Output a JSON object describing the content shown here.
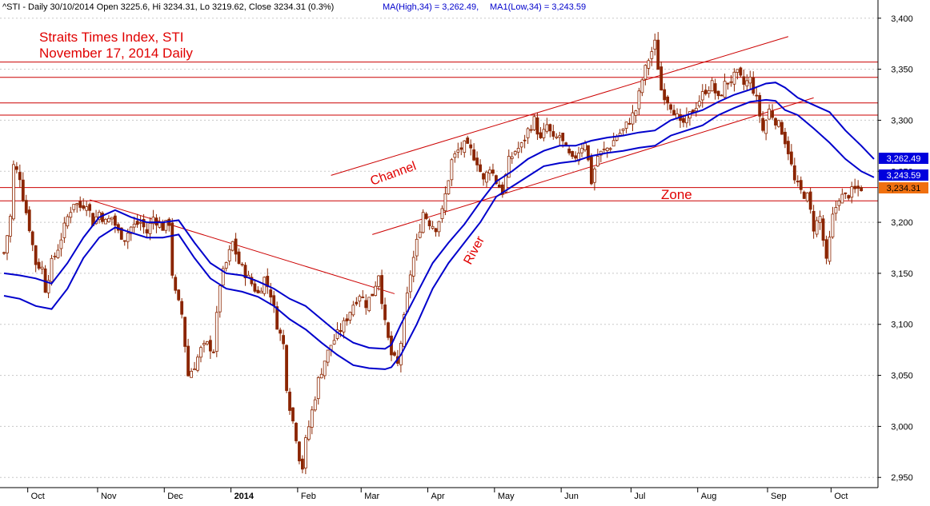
{
  "header": {
    "symbol_text": "^STI - Daily 30/10/2014 Open 3225.6, Hi 3234.31, Lo 3219.62, Close 3234.31 (0.3%)",
    "ma_high_text": "MA(High,34) = 3,262.49,",
    "ma_low_text": "MA1(Low,34) = 3,243.59"
  },
  "annotations": {
    "title_line1": "Straits Times Index, STI",
    "title_line2": "November 17, 2014 Daily",
    "channel": "Channel",
    "river": "River",
    "zone": "Zone"
  },
  "price_tags": {
    "ma_high": "3,262.49",
    "ma_low": "3,243.59",
    "close": "3,234.31",
    "hidden": "3,250"
  },
  "colors": {
    "candle": "#8b2500",
    "ma": "#0000cc",
    "level": "#cc0000",
    "annotation": "#e00000",
    "grid": "#c8c8c8",
    "tag_ma": "#0000dd",
    "tag_close": "#f07010"
  },
  "chart_data": {
    "type": "candlestick",
    "y_axis": {
      "min": 2940,
      "max": 3410,
      "ticks": [
        2950,
        3000,
        3050,
        3100,
        3150,
        3200,
        3250,
        3300,
        3350,
        3400
      ],
      "tick_labels": [
        "2,950",
        "3,000",
        "3,050",
        "3,100",
        "3,150",
        "3,200",
        "3,250",
        "3,300",
        "3,350",
        "3,400"
      ]
    },
    "x_axis": {
      "labels": [
        "Oct",
        "Nov",
        "Dec",
        "2014",
        "Feb",
        "Mar",
        "Apr",
        "May",
        "Jun",
        "Jul",
        "Aug",
        "Sep",
        "Oct"
      ]
    },
    "horizontal_levels": [
      3357,
      3342,
      3317,
      3305,
      3234,
      3221
    ],
    "ohlc_last": {
      "date": "30/10/2014",
      "open": 3225.6,
      "high": 3234.31,
      "low": 3219.62,
      "close": 3234.31
    },
    "ma_high_34": [
      [
        0,
        3150
      ],
      [
        5,
        3148
      ],
      [
        10,
        3145
      ],
      [
        15,
        3140
      ],
      [
        20,
        3160
      ],
      [
        25,
        3185
      ],
      [
        30,
        3205
      ],
      [
        35,
        3212
      ],
      [
        40,
        3205
      ],
      [
        45,
        3200
      ],
      [
        50,
        3200
      ],
      [
        55,
        3202
      ],
      [
        60,
        3180
      ],
      [
        65,
        3160
      ],
      [
        70,
        3150
      ],
      [
        75,
        3148
      ],
      [
        80,
        3142
      ],
      [
        85,
        3135
      ],
      [
        90,
        3125
      ],
      [
        95,
        3118
      ],
      [
        100,
        3105
      ],
      [
        105,
        3092
      ],
      [
        110,
        3082
      ],
      [
        115,
        3077
      ],
      [
        120,
        3076
      ],
      [
        122,
        3080
      ],
      [
        125,
        3100
      ],
      [
        130,
        3130
      ],
      [
        135,
        3160
      ],
      [
        140,
        3180
      ],
      [
        145,
        3198
      ],
      [
        150,
        3220
      ],
      [
        155,
        3240
      ],
      [
        160,
        3250
      ],
      [
        165,
        3262
      ],
      [
        170,
        3270
      ],
      [
        175,
        3275
      ],
      [
        180,
        3275
      ],
      [
        185,
        3280
      ],
      [
        190,
        3283
      ],
      [
        195,
        3285
      ],
      [
        200,
        3288
      ],
      [
        205,
        3290
      ],
      [
        210,
        3300
      ],
      [
        215,
        3305
      ],
      [
        220,
        3310
      ],
      [
        225,
        3318
      ],
      [
        230,
        3325
      ],
      [
        235,
        3330
      ],
      [
        240,
        3336
      ],
      [
        243,
        3337
      ],
      [
        246,
        3332
      ],
      [
        250,
        3322
      ],
      [
        255,
        3315
      ],
      [
        260,
        3308
      ],
      [
        265,
        3290
      ],
      [
        270,
        3275
      ],
      [
        274,
        3262
      ]
    ],
    "ma_low_34": [
      [
        0,
        3128
      ],
      [
        5,
        3125
      ],
      [
        10,
        3118
      ],
      [
        15,
        3115
      ],
      [
        20,
        3135
      ],
      [
        25,
        3165
      ],
      [
        30,
        3185
      ],
      [
        35,
        3195
      ],
      [
        40,
        3190
      ],
      [
        45,
        3185
      ],
      [
        50,
        3185
      ],
      [
        55,
        3188
      ],
      [
        60,
        3165
      ],
      [
        65,
        3145
      ],
      [
        70,
        3135
      ],
      [
        75,
        3132
      ],
      [
        80,
        3127
      ],
      [
        85,
        3118
      ],
      [
        90,
        3105
      ],
      [
        95,
        3095
      ],
      [
        100,
        3082
      ],
      [
        105,
        3070
      ],
      [
        110,
        3060
      ],
      [
        115,
        3057
      ],
      [
        120,
        3056
      ],
      [
        122,
        3058
      ],
      [
        125,
        3070
      ],
      [
        130,
        3100
      ],
      [
        135,
        3135
      ],
      [
        140,
        3160
      ],
      [
        145,
        3180
      ],
      [
        150,
        3200
      ],
      [
        155,
        3225
      ],
      [
        160,
        3235
      ],
      [
        165,
        3245
      ],
      [
        170,
        3255
      ],
      [
        175,
        3258
      ],
      [
        180,
        3260
      ],
      [
        185,
        3265
      ],
      [
        190,
        3268
      ],
      [
        195,
        3270
      ],
      [
        200,
        3273
      ],
      [
        205,
        3275
      ],
      [
        210,
        3285
      ],
      [
        215,
        3290
      ],
      [
        220,
        3295
      ],
      [
        225,
        3305
      ],
      [
        230,
        3312
      ],
      [
        235,
        3318
      ],
      [
        240,
        3320
      ],
      [
        243,
        3319
      ],
      [
        246,
        3310
      ],
      [
        250,
        3305
      ],
      [
        255,
        3292
      ],
      [
        260,
        3278
      ],
      [
        265,
        3262
      ],
      [
        270,
        3250
      ],
      [
        274,
        3244
      ]
    ],
    "close_series": [
      [
        0,
        3170
      ],
      [
        2,
        3205
      ],
      [
        3,
        3255
      ],
      [
        5,
        3245
      ],
      [
        6,
        3225
      ],
      [
        8,
        3195
      ],
      [
        10,
        3160
      ],
      [
        12,
        3155
      ],
      [
        13,
        3135
      ],
      [
        15,
        3160
      ],
      [
        17,
        3175
      ],
      [
        20,
        3205
      ],
      [
        22,
        3220
      ],
      [
        24,
        3215
      ],
      [
        26,
        3220
      ],
      [
        28,
        3200
      ],
      [
        30,
        3210
      ],
      [
        32,
        3200
      ],
      [
        34,
        3205
      ],
      [
        36,
        3190
      ],
      [
        38,
        3185
      ],
      [
        40,
        3195
      ],
      [
        43,
        3200
      ],
      [
        45,
        3190
      ],
      [
        47,
        3205
      ],
      [
        50,
        3195
      ],
      [
        52,
        3200
      ],
      [
        53,
        3150
      ],
      [
        54,
        3130
      ],
      [
        56,
        3110
      ],
      [
        58,
        3050
      ],
      [
        60,
        3060
      ],
      [
        62,
        3075
      ],
      [
        64,
        3080
      ],
      [
        66,
        3075
      ],
      [
        68,
        3140
      ],
      [
        70,
        3160
      ],
      [
        72,
        3180
      ],
      [
        74,
        3160
      ],
      [
        76,
        3150
      ],
      [
        78,
        3140
      ],
      [
        80,
        3130
      ],
      [
        82,
        3145
      ],
      [
        84,
        3130
      ],
      [
        86,
        3100
      ],
      [
        88,
        3080
      ],
      [
        89,
        3040
      ],
      [
        90,
        3020
      ],
      [
        92,
        2990
      ],
      [
        93,
        2970
      ],
      [
        94,
        2960
      ],
      [
        95,
        2985
      ],
      [
        97,
        3015
      ],
      [
        99,
        3045
      ],
      [
        101,
        3065
      ],
      [
        103,
        3080
      ],
      [
        105,
        3090
      ],
      [
        107,
        3100
      ],
      [
        110,
        3120
      ],
      [
        112,
        3130
      ],
      [
        114,
        3120
      ],
      [
        116,
        3130
      ],
      [
        118,
        3150
      ],
      [
        120,
        3100
      ],
      [
        122,
        3070
      ],
      [
        124,
        3060
      ],
      [
        126,
        3105
      ],
      [
        128,
        3150
      ],
      [
        130,
        3180
      ],
      [
        132,
        3210
      ],
      [
        134,
        3200
      ],
      [
        136,
        3195
      ],
      [
        138,
        3210
      ],
      [
        141,
        3260
      ],
      [
        143,
        3270
      ],
      [
        145,
        3275
      ],
      [
        147,
        3270
      ],
      [
        149,
        3260
      ],
      [
        151,
        3240
      ],
      [
        153,
        3255
      ],
      [
        155,
        3240
      ],
      [
        157,
        3230
      ],
      [
        159,
        3260
      ],
      [
        161,
        3270
      ],
      [
        163,
        3275
      ],
      [
        165,
        3290
      ],
      [
        167,
        3300
      ],
      [
        169,
        3280
      ],
      [
        171,
        3295
      ],
      [
        173,
        3280
      ],
      [
        175,
        3285
      ],
      [
        177,
        3270
      ],
      [
        179,
        3260
      ],
      [
        181,
        3270
      ],
      [
        183,
        3280
      ],
      [
        185,
        3240
      ],
      [
        187,
        3265
      ],
      [
        189,
        3270
      ],
      [
        191,
        3275
      ],
      [
        193,
        3285
      ],
      [
        195,
        3290
      ],
      [
        197,
        3300
      ],
      [
        199,
        3310
      ],
      [
        201,
        3340
      ],
      [
        203,
        3360
      ],
      [
        205,
        3375
      ],
      [
        207,
        3330
      ],
      [
        209,
        3320
      ],
      [
        211,
        3310
      ],
      [
        213,
        3295
      ],
      [
        215,
        3300
      ],
      [
        217,
        3310
      ],
      [
        219,
        3320
      ],
      [
        221,
        3330
      ],
      [
        223,
        3335
      ],
      [
        225,
        3320
      ],
      [
        227,
        3335
      ],
      [
        229,
        3340
      ],
      [
        231,
        3345
      ],
      [
        233,
        3335
      ],
      [
        235,
        3340
      ],
      [
        237,
        3320
      ],
      [
        239,
        3290
      ],
      [
        241,
        3310
      ],
      [
        243,
        3300
      ],
      [
        245,
        3290
      ],
      [
        247,
        3270
      ],
      [
        249,
        3240
      ],
      [
        251,
        3230
      ],
      [
        253,
        3225
      ],
      [
        255,
        3195
      ],
      [
        257,
        3205
      ],
      [
        259,
        3160
      ],
      [
        261,
        3205
      ],
      [
        263,
        3225
      ],
      [
        265,
        3225
      ],
      [
        267,
        3230
      ],
      [
        270,
        3234
      ]
    ],
    "trend_lines": [
      {
        "name": "downtrend",
        "from": [
          27,
          3222
        ],
        "to": [
          123,
          3130
        ]
      },
      {
        "name": "channel_top",
        "from": [
          103,
          3246
        ],
        "to": [
          247,
          3382
        ]
      },
      {
        "name": "channel_bottom",
        "from": [
          116,
          3188
        ],
        "to": [
          255,
          3322
        ]
      }
    ],
    "title": "",
    "xlabel": "",
    "ylabel": ""
  }
}
